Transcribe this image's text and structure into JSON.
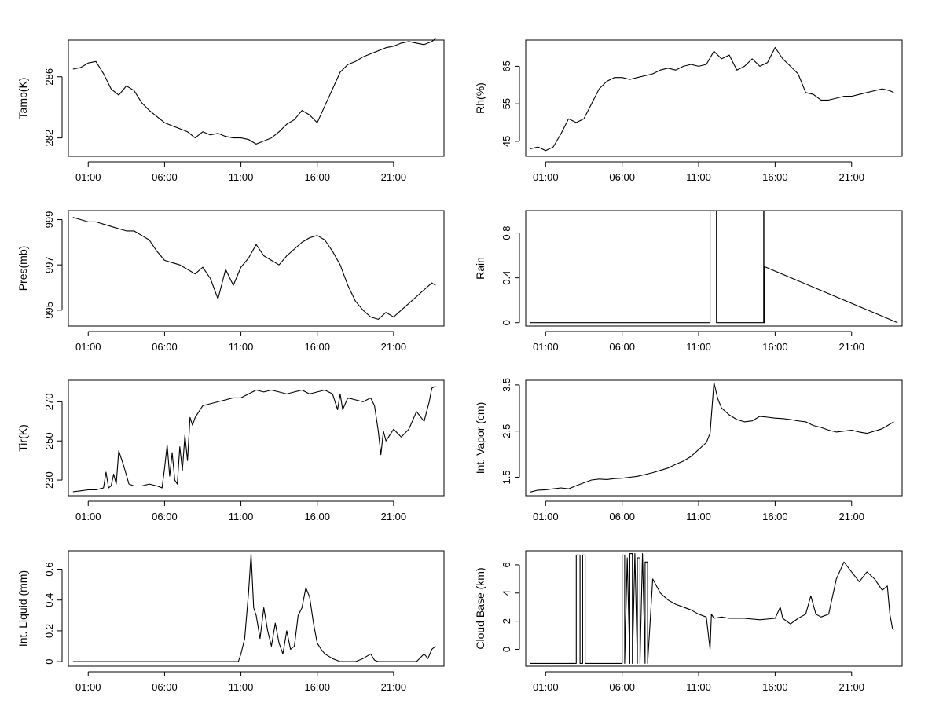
{
  "x_ticks": [
    "01:00",
    "06:00",
    "11:00",
    "16:00",
    "21:00"
  ],
  "chart_data": [
    {
      "type": "line",
      "ylabel": "Tamb(K)",
      "x_range": [
        "00:00",
        "24:00"
      ],
      "ylim": [
        280.8,
        288.4
      ],
      "y_ticks": [
        282,
        286
      ],
      "x": [
        "00:00",
        "00:30",
        "01:00",
        "01:30",
        "02:00",
        "02:30",
        "03:00",
        "03:30",
        "04:00",
        "04:30",
        "05:00",
        "05:30",
        "06:00",
        "06:30",
        "07:00",
        "07:30",
        "08:00",
        "08:30",
        "09:00",
        "09:30",
        "10:00",
        "10:30",
        "11:00",
        "11:30",
        "12:00",
        "12:30",
        "13:00",
        "13:30",
        "14:00",
        "14:30",
        "15:00",
        "15:30",
        "16:00",
        "16:30",
        "17:00",
        "17:30",
        "18:00",
        "18:30",
        "19:00",
        "19:30",
        "20:00",
        "20:30",
        "21:00",
        "21:30",
        "22:00",
        "22:30",
        "23:00",
        "23:30",
        "23:45"
      ],
      "values": [
        286.5,
        286.6,
        286.9,
        287.0,
        286.2,
        285.2,
        284.8,
        285.4,
        285.1,
        284.3,
        283.8,
        283.4,
        283.0,
        282.8,
        282.6,
        282.4,
        282.0,
        282.4,
        282.2,
        282.3,
        282.1,
        282.0,
        282.0,
        281.9,
        281.6,
        281.8,
        282.0,
        282.4,
        282.9,
        283.2,
        283.8,
        283.5,
        283.0,
        284.1,
        285.2,
        286.3,
        286.8,
        287.0,
        287.3,
        287.5,
        287.7,
        287.9,
        288.0,
        288.2,
        288.3,
        288.2,
        288.1,
        288.3,
        288.5
      ]
    },
    {
      "type": "line",
      "ylabel": "Rh(%)",
      "x_range": [
        "00:00",
        "24:00"
      ],
      "ylim": [
        41,
        72
      ],
      "y_ticks": [
        45,
        55,
        65
      ],
      "x": [
        "00:00",
        "00:30",
        "01:00",
        "01:30",
        "02:00",
        "02:30",
        "03:00",
        "03:30",
        "04:00",
        "04:30",
        "05:00",
        "05:30",
        "06:00",
        "06:30",
        "07:00",
        "07:30",
        "08:00",
        "08:30",
        "09:00",
        "09:30",
        "10:00",
        "10:30",
        "11:00",
        "11:30",
        "12:00",
        "12:30",
        "13:00",
        "13:30",
        "14:00",
        "14:30",
        "15:00",
        "15:30",
        "16:00",
        "16:30",
        "17:00",
        "17:30",
        "18:00",
        "18:30",
        "19:00",
        "19:30",
        "20:00",
        "20:30",
        "21:00",
        "21:30",
        "22:00",
        "22:30",
        "23:00",
        "23:30",
        "23:45"
      ],
      "values": [
        43,
        43.5,
        42.5,
        43.5,
        47,
        51,
        50,
        51,
        55,
        59,
        61,
        62,
        62,
        61.5,
        62,
        62.5,
        63,
        64,
        64.5,
        64,
        65,
        65.5,
        65,
        65.5,
        69,
        67,
        68,
        64,
        65,
        67,
        65,
        66,
        70,
        67,
        65,
        63,
        58,
        57.5,
        56,
        56,
        56.5,
        57,
        57,
        57.5,
        58,
        58.5,
        59,
        58.5,
        58
      ]
    },
    {
      "type": "line",
      "ylabel": "Pres(mb)",
      "x_range": [
        "00:00",
        "24:00"
      ],
      "ylim": [
        994.3,
        999.4
      ],
      "y_ticks": [
        995,
        997,
        999
      ],
      "x": [
        "00:00",
        "00:30",
        "01:00",
        "01:30",
        "02:00",
        "02:30",
        "03:00",
        "03:30",
        "04:00",
        "04:30",
        "05:00",
        "05:30",
        "06:00",
        "06:30",
        "07:00",
        "07:30",
        "08:00",
        "08:30",
        "09:00",
        "09:30",
        "10:00",
        "10:30",
        "11:00",
        "11:30",
        "12:00",
        "12:30",
        "13:00",
        "13:30",
        "14:00",
        "14:30",
        "15:00",
        "15:30",
        "16:00",
        "16:30",
        "17:00",
        "17:30",
        "18:00",
        "18:30",
        "19:00",
        "19:30",
        "20:00",
        "20:30",
        "21:00",
        "21:30",
        "22:00",
        "22:30",
        "23:00",
        "23:30",
        "23:45"
      ],
      "values": [
        999.1,
        999.0,
        998.9,
        998.9,
        998.8,
        998.7,
        998.6,
        998.5,
        998.5,
        998.3,
        998.1,
        997.6,
        997.2,
        997.1,
        997.0,
        996.8,
        996.6,
        996.9,
        996.4,
        995.5,
        996.8,
        996.1,
        996.9,
        997.3,
        997.9,
        997.4,
        997.2,
        997.0,
        997.4,
        997.7,
        998.0,
        998.2,
        998.3,
        998.1,
        997.6,
        997.0,
        996.1,
        995.4,
        995.0,
        994.7,
        994.6,
        994.9,
        994.7,
        995.0,
        995.3,
        995.6,
        995.9,
        996.2,
        996.1
      ]
    },
    {
      "type": "line",
      "ylabel": "Rain",
      "x_range": [
        "00:00",
        "24:00"
      ],
      "ylim": [
        -0.03,
        1.0
      ],
      "y_ticks": [
        0.0,
        0.4,
        0.8
      ],
      "x": [
        "00:00",
        "11:45",
        "11:45",
        "12:10",
        "12:10",
        "15:15",
        "15:15",
        "15:16",
        "15:16",
        "15:18",
        "15:18",
        "24:00"
      ],
      "values": [
        0,
        0,
        1,
        1,
        0,
        0,
        1,
        1,
        0,
        0,
        0.5,
        0
      ]
    },
    {
      "type": "line",
      "ylabel": "Tir(K)",
      "x_range": [
        "00:00",
        "24:00"
      ],
      "ylim": [
        222,
        281
      ],
      "y_ticks": [
        230,
        250,
        270
      ],
      "x": [
        "00:00",
        "00:30",
        "01:00",
        "01:30",
        "02:00",
        "02:10",
        "02:20",
        "02:30",
        "02:40",
        "02:50",
        "03:00",
        "03:20",
        "03:40",
        "04:00",
        "04:30",
        "05:00",
        "05:30",
        "05:50",
        "06:00",
        "06:10",
        "06:20",
        "06:30",
        "06:40",
        "06:50",
        "07:00",
        "07:10",
        "07:20",
        "07:30",
        "07:40",
        "07:50",
        "08:00",
        "08:30",
        "09:00",
        "09:30",
        "10:00",
        "10:30",
        "11:00",
        "11:30",
        "12:00",
        "12:30",
        "13:00",
        "13:30",
        "14:00",
        "14:30",
        "15:00",
        "15:30",
        "16:00",
        "16:30",
        "17:00",
        "17:20",
        "17:30",
        "17:40",
        "18:00",
        "18:30",
        "19:00",
        "19:30",
        "19:45",
        "20:00",
        "20:10",
        "20:20",
        "20:30",
        "21:00",
        "21:30",
        "22:00",
        "22:30",
        "23:00",
        "23:20",
        "23:30",
        "23:45"
      ],
      "values": [
        224,
        224.5,
        225,
        225,
        226,
        234,
        226,
        227,
        233,
        228,
        245,
        237,
        228,
        227,
        227,
        228,
        227,
        226,
        236,
        248,
        232,
        244,
        230,
        228,
        247,
        235,
        253,
        240,
        262,
        258,
        262,
        268,
        269,
        270,
        271,
        272,
        272,
        274,
        276,
        275,
        276,
        275,
        274,
        275,
        276,
        274,
        275,
        276,
        274,
        266,
        274,
        266,
        272,
        271,
        270,
        272,
        268,
        255,
        243,
        255,
        250,
        256,
        252,
        256,
        265,
        260,
        270,
        277,
        278
      ]
    },
    {
      "type": "line",
      "ylabel": "Int. Vapor (cm)",
      "x_range": [
        "00:00",
        "24:00"
      ],
      "ylim": [
        1.1,
        3.6
      ],
      "y_ticks": [
        1.5,
        2.5,
        3.5
      ],
      "x": [
        "00:00",
        "00:30",
        "01:00",
        "01:30",
        "02:00",
        "02:30",
        "03:00",
        "03:30",
        "04:00",
        "04:30",
        "05:00",
        "05:30",
        "06:00",
        "06:30",
        "07:00",
        "07:30",
        "08:00",
        "08:30",
        "09:00",
        "09:30",
        "10:00",
        "10:30",
        "11:00",
        "11:30",
        "11:45",
        "12:00",
        "12:15",
        "12:30",
        "13:00",
        "13:30",
        "14:00",
        "14:30",
        "15:00",
        "15:30",
        "16:00",
        "16:30",
        "17:00",
        "17:30",
        "18:00",
        "18:30",
        "19:00",
        "19:30",
        "20:00",
        "20:30",
        "21:00",
        "21:30",
        "22:00",
        "22:30",
        "23:00",
        "23:30",
        "23:45"
      ],
      "values": [
        1.18,
        1.22,
        1.23,
        1.25,
        1.27,
        1.25,
        1.32,
        1.38,
        1.44,
        1.46,
        1.45,
        1.47,
        1.48,
        1.5,
        1.52,
        1.56,
        1.6,
        1.65,
        1.7,
        1.78,
        1.85,
        1.95,
        2.1,
        2.25,
        2.45,
        3.55,
        3.2,
        3.0,
        2.85,
        2.75,
        2.7,
        2.72,
        2.82,
        2.8,
        2.78,
        2.77,
        2.75,
        2.72,
        2.7,
        2.62,
        2.58,
        2.52,
        2.48,
        2.5,
        2.52,
        2.48,
        2.45,
        2.5,
        2.55,
        2.65,
        2.7
      ]
    },
    {
      "type": "line",
      "ylabel": "Int. Liquid (mm)",
      "x_range": [
        "00:00",
        "24:00"
      ],
      "ylim": [
        -0.03,
        0.72
      ],
      "y_ticks": [
        0.0,
        0.2,
        0.4,
        0.6
      ],
      "x": [
        "00:00",
        "10:50",
        "11:00",
        "11:15",
        "11:30",
        "11:40",
        "11:50",
        "12:00",
        "12:15",
        "12:30",
        "12:45",
        "13:00",
        "13:15",
        "13:30",
        "13:45",
        "14:00",
        "14:15",
        "14:30",
        "14:45",
        "15:00",
        "15:15",
        "15:30",
        "15:45",
        "16:00",
        "16:15",
        "16:30",
        "17:00",
        "17:30",
        "18:00",
        "18:30",
        "19:00",
        "19:30",
        "19:45",
        "20:00",
        "20:30",
        "21:00",
        "21:30",
        "22:00",
        "22:30",
        "23:00",
        "23:15",
        "23:30",
        "23:45"
      ],
      "values": [
        0,
        0,
        0.05,
        0.15,
        0.45,
        0.7,
        0.35,
        0.3,
        0.15,
        0.35,
        0.2,
        0.1,
        0.25,
        0.12,
        0.05,
        0.2,
        0.08,
        0.1,
        0.3,
        0.35,
        0.48,
        0.42,
        0.25,
        0.12,
        0.08,
        0.05,
        0.02,
        0,
        0,
        0,
        0.02,
        0.05,
        0.01,
        0,
        0,
        0,
        0,
        0,
        0,
        0.05,
        0.02,
        0.08,
        0.1
      ]
    },
    {
      "type": "line",
      "ylabel": "Cloud Base (km)",
      "x_range": [
        "00:00",
        "24:00"
      ],
      "ylim": [
        -1.2,
        7.0
      ],
      "y_ticks": [
        0,
        2,
        4,
        6
      ],
      "x": [
        "00:00",
        "03:00",
        "03:00",
        "03:15",
        "03:15",
        "03:25",
        "03:25",
        "03:35",
        "03:35",
        "06:00",
        "06:00",
        "06:10",
        "06:10",
        "06:20",
        "06:20",
        "06:30",
        "06:30",
        "06:40",
        "06:40",
        "06:50",
        "06:50",
        "07:00",
        "07:00",
        "07:10",
        "07:10",
        "07:20",
        "07:20",
        "07:30",
        "07:30",
        "07:40",
        "07:40",
        "08:00",
        "08:30",
        "09:00",
        "09:30",
        "10:00",
        "10:30",
        "11:00",
        "11:30",
        "11:45",
        "11:50",
        "12:00",
        "12:30",
        "13:00",
        "14:00",
        "15:00",
        "16:00",
        "16:20",
        "16:30",
        "17:00",
        "17:30",
        "18:00",
        "18:20",
        "18:40",
        "19:00",
        "19:30",
        "20:00",
        "20:30",
        "21:00",
        "21:30",
        "22:00",
        "22:30",
        "23:00",
        "23:20",
        "23:30",
        "23:40",
        "23:45"
      ],
      "values": [
        -1,
        -1,
        6.7,
        6.7,
        -1,
        -1,
        6.7,
        6.7,
        -1,
        -1,
        6.7,
        6.7,
        -1,
        6.5,
        6.5,
        -1,
        6.8,
        6.8,
        -1,
        6.8,
        6.8,
        -1,
        6.5,
        6.5,
        -1,
        6.8,
        6.8,
        -1,
        6.2,
        6.2,
        -1,
        5,
        4,
        3.5,
        3.2,
        3,
        2.8,
        2.5,
        2.3,
        0,
        2.5,
        2.2,
        2.3,
        2.2,
        2.2,
        2.1,
        2.2,
        3,
        2.2,
        1.8,
        2.2,
        2.5,
        3.8,
        2.5,
        2.3,
        2.5,
        5,
        6.2,
        5.5,
        4.8,
        5.5,
        5,
        4.2,
        4.5,
        2.5,
        1.5,
        1.4
      ]
    }
  ]
}
